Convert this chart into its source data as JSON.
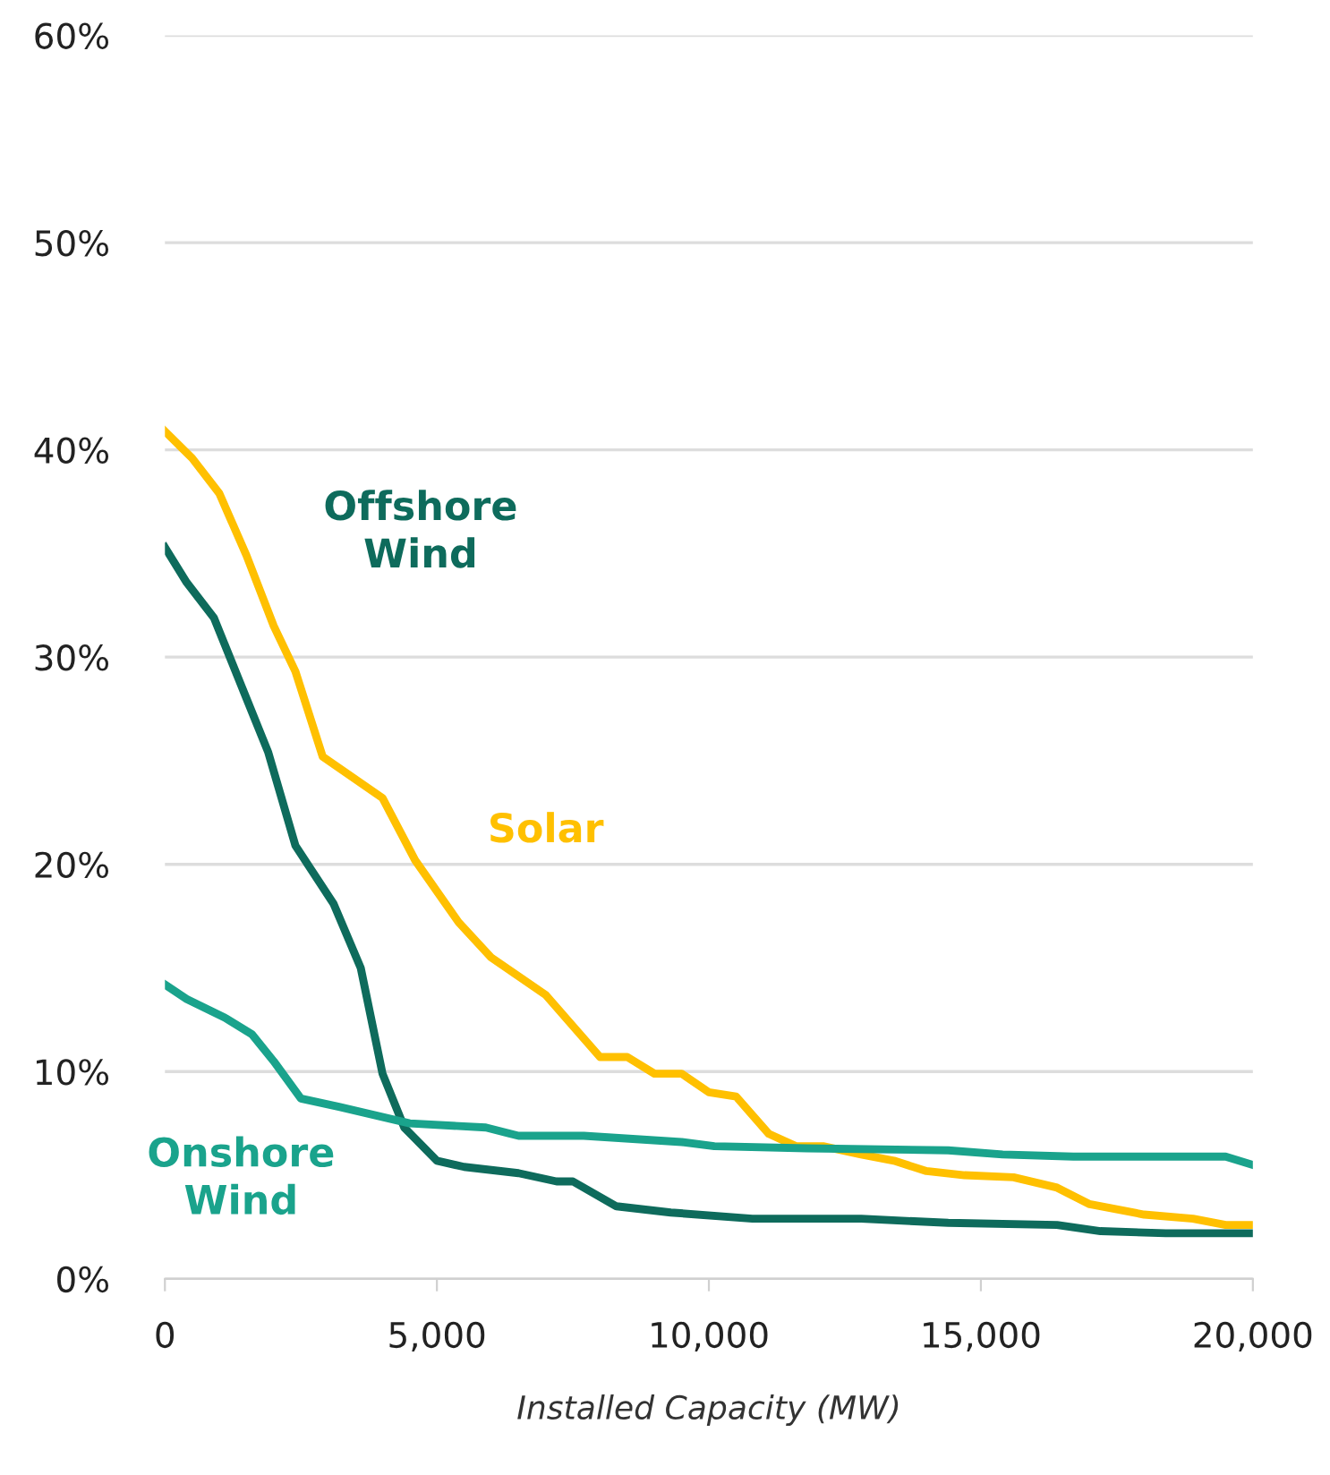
{
  "chart_data": {
    "type": "line",
    "xlabel": "Installed Capacity (MW)",
    "xlim": [
      0,
      20000
    ],
    "ylim": [
      0,
      60
    ],
    "xticks": [
      {
        "value": 0,
        "label": "0"
      },
      {
        "value": 5000,
        "label": "5,000"
      },
      {
        "value": 10000,
        "label": "10,000"
      },
      {
        "value": 15000,
        "label": "15,000"
      },
      {
        "value": 20000,
        "label": "20,000"
      }
    ],
    "yticks": [
      {
        "value": 0,
        "label": "0%"
      },
      {
        "value": 10,
        "label": "10%"
      },
      {
        "value": 20,
        "label": "20%"
      },
      {
        "value": 30,
        "label": "30%"
      },
      {
        "value": 40,
        "label": "40%"
      },
      {
        "value": 50,
        "label": "50%"
      },
      {
        "value": 60,
        "label": "60%"
      }
    ],
    "grid": "y",
    "legend": false,
    "marker": "none",
    "line_style": "solid",
    "series": [
      {
        "name": "Offshore Wind",
        "color": "#0e6b5c",
        "x": [
          0,
          400,
          900,
          1500,
          1900,
          2400,
          3100,
          3600,
          4000,
          4400,
          5000,
          5500,
          6500,
          7200,
          7500,
          8300,
          9300,
          10800,
          12800,
          14400,
          16400,
          17200,
          18400,
          20000
        ],
        "values": [
          35.3,
          33.6,
          31.9,
          28.0,
          25.4,
          20.9,
          18.1,
          15.0,
          9.9,
          7.3,
          5.7,
          5.4,
          5.1,
          4.7,
          4.7,
          3.5,
          3.2,
          2.9,
          2.9,
          2.7,
          2.6,
          2.3,
          2.2,
          2.2
        ]
      },
      {
        "name": "Solar",
        "color": "#ffc000",
        "x": [
          0,
          500,
          1000,
          1500,
          2000,
          2400,
          2900,
          4000,
          4600,
          5400,
          6000,
          7000,
          8000,
          8500,
          9000,
          9500,
          10000,
          10500,
          11100,
          11600,
          12100,
          12800,
          13400,
          14000,
          14700,
          15600,
          16400,
          17000,
          18000,
          18900,
          19500,
          20000
        ],
        "values": [
          40.9,
          39.6,
          37.9,
          34.9,
          31.5,
          29.3,
          25.2,
          23.2,
          20.2,
          17.2,
          15.5,
          13.7,
          10.7,
          10.7,
          9.9,
          9.9,
          9.0,
          8.8,
          7.0,
          6.4,
          6.4,
          6.0,
          5.7,
          5.2,
          5.0,
          4.9,
          4.4,
          3.6,
          3.1,
          2.9,
          2.6,
          2.6
        ]
      },
      {
        "name": "Onshore Wind",
        "color": "#1aa38c",
        "x": [
          0,
          400,
          1100,
          1600,
          2000,
          2500,
          3200,
          4500,
          5900,
          6500,
          7700,
          9500,
          10100,
          11800,
          14400,
          15400,
          16700,
          19500,
          20000
        ],
        "values": [
          14.2,
          13.5,
          12.6,
          11.8,
          10.5,
          8.7,
          8.3,
          7.5,
          7.3,
          6.9,
          6.9,
          6.6,
          6.4,
          6.3,
          6.2,
          6.0,
          5.9,
          5.9,
          5.5
        ]
      }
    ]
  }
}
